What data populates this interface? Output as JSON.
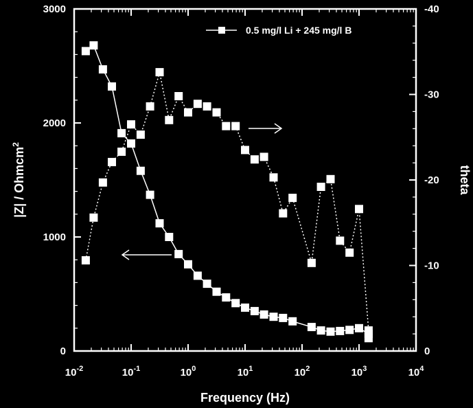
{
  "chart_data": {
    "type": "scatter",
    "xlabel": "Frequency (Hz)",
    "ylabel_left": "|Z| / Ohmcm",
    "ylabel_left_sup": "2",
    "ylabel_right": "theta",
    "x_scale": "log",
    "xlim": [
      0.01,
      10000
    ],
    "x_ticks": [
      {
        "base": "10",
        "exp": "-2"
      },
      {
        "base": "10",
        "exp": "-1"
      },
      {
        "base": "10",
        "exp": "0"
      },
      {
        "base": "10",
        "exp": "1"
      },
      {
        "base": "10",
        "exp": "2"
      },
      {
        "base": "10",
        "exp": "3"
      },
      {
        "base": "10",
        "exp": "4"
      }
    ],
    "ylim_left": [
      0,
      3000
    ],
    "y_ticks_left": [
      "0",
      "1000",
      "2000",
      "3000"
    ],
    "ylim_right": [
      0,
      -40
    ],
    "y_ticks_right": [
      "0",
      "-10",
      "-20",
      "-30",
      "-40"
    ],
    "grid": false,
    "legend_position": "top-right",
    "legend_label": "0.5 mg/l Li + 245 mg/l B",
    "series": [
      {
        "name": "0.5 mg/l Li + 245 mg/l B",
        "axis": "left",
        "style": "solid",
        "x": [
          0.016,
          0.022,
          0.032,
          0.046,
          0.068,
          0.1,
          0.147,
          0.215,
          0.316,
          0.464,
          0.681,
          1.0,
          1.47,
          2.15,
          3.16,
          4.64,
          6.81,
          10,
          14.7,
          21.5,
          31.6,
          46.4,
          68.1,
          147,
          215,
          316,
          464,
          681,
          1000,
          1470
        ],
        "y": [
          2630,
          2680,
          2470,
          2320,
          1910,
          1820,
          1580,
          1370,
          1120,
          1000,
          850,
          760,
          660,
          590,
          520,
          470,
          420,
          380,
          350,
          320,
          300,
          290,
          260,
          210,
          180,
          170,
          175,
          185,
          200,
          150
        ]
      },
      {
        "axis": "right",
        "style": "dotted",
        "x": [
          0.016,
          0.022,
          0.032,
          0.046,
          0.068,
          0.1,
          0.147,
          0.215,
          0.316,
          0.464,
          0.681,
          1.0,
          1.47,
          2.15,
          3.16,
          4.64,
          6.81,
          10,
          14.7,
          21.5,
          31.6,
          46.4,
          68.1,
          147,
          215,
          316,
          464,
          681,
          1000,
          1470,
          1470
        ],
        "y": [
          -10.6,
          -15.6,
          -19.7,
          -22.1,
          -23.3,
          -26.5,
          -25.3,
          -28.6,
          -32.6,
          -27.0,
          -29.8,
          -27.9,
          -28.9,
          -28.6,
          -27.9,
          -26.3,
          -26.3,
          -23.5,
          -22.4,
          -22.7,
          -20.3,
          -16.1,
          -17.9,
          -10.3,
          -19.2,
          -20.1,
          -12.9,
          -11.5,
          -16.6,
          -2.4,
          -1.5
        ]
      }
    ],
    "annotations": [
      {
        "text": "arrow pointing right to theta axis",
        "points_to": "right"
      },
      {
        "text": "arrow pointing left to |Z| axis",
        "points_to": "left"
      }
    ]
  }
}
